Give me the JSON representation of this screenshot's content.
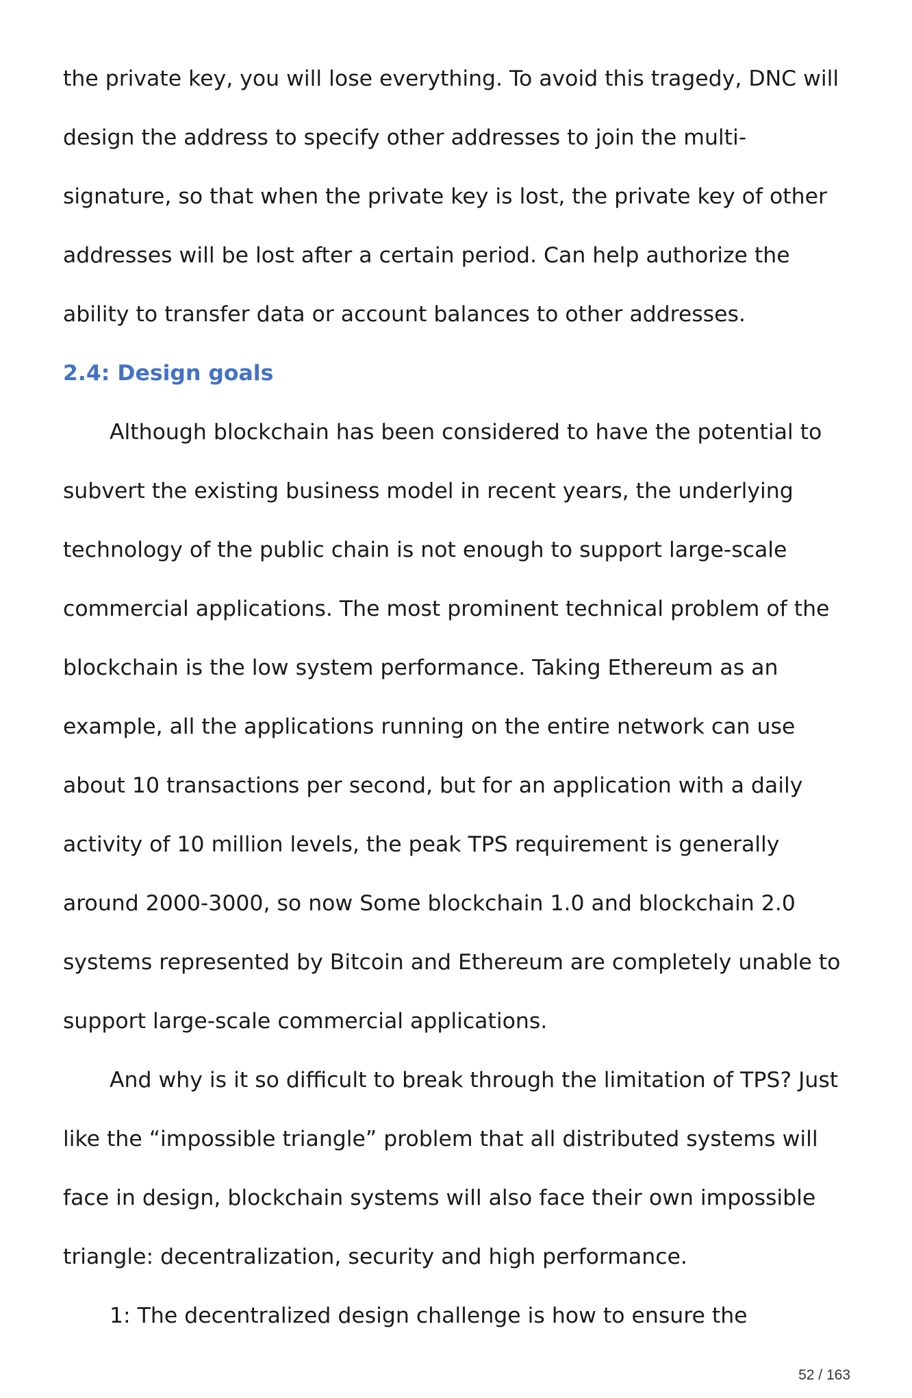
{
  "paragraph_1": [
    "the private key, you will lose everything. To avoid this tragedy, DNC will",
    "design the address to specify other addresses to join the multi-",
    "signature, so that when the private key is lost, the private key of other",
    "addresses will be lost after a certain period. Can help authorize the",
    "ability to transfer data or account balances to other addresses."
  ],
  "section_heading": "2.4: Design goals",
  "paragraph_2": [
    "Although blockchain has been considered to have the potential to",
    "subvert the existing business model in recent years, the underlying",
    "technology of the public chain is not enough to support large-scale",
    "commercial applications. The most prominent technical problem of the",
    "blockchain is the low system performance. Taking Ethereum as an",
    "example, all the applications running on the entire network can use",
    "about 10 transactions per second, but for an application with a daily",
    "activity of 10 million levels, the peak TPS requirement is generally",
    "around 2000-3000, so now Some blockchain 1.0 and blockchain 2.0",
    "systems represented by Bitcoin and Ethereum are completely unable to",
    "support large-scale commercial applications."
  ],
  "paragraph_3": [
    "And why is it so difficult to break through the limitation of TPS? Just",
    "like the  “impossible triangle”  problem that all distributed systems will",
    "face in design, blockchain systems will also face their own impossible",
    "triangle: decentralization, security and high performance."
  ],
  "paragraph_4": [
    "1: The decentralized design challenge is how to ensure the"
  ],
  "page_number": "52 / 163"
}
